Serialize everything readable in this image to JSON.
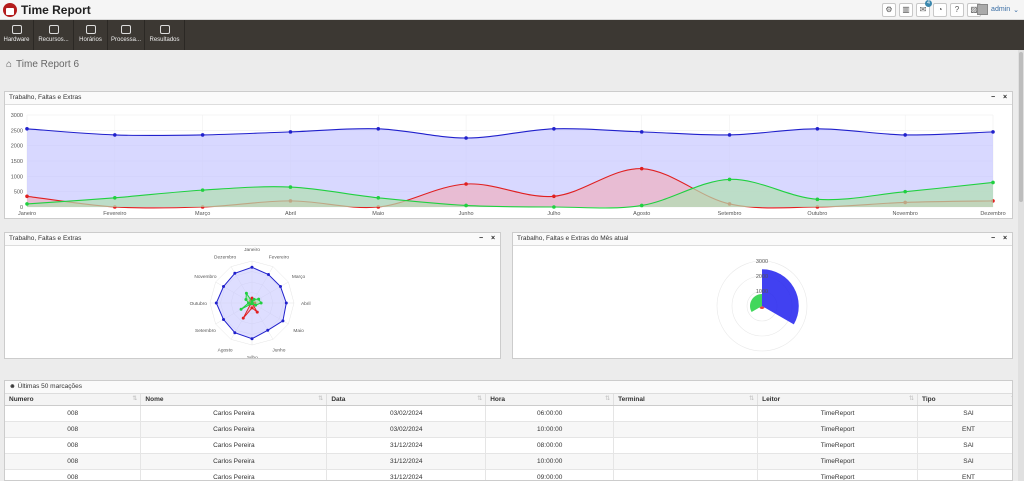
{
  "app": {
    "title": "Time Report",
    "user": "admin",
    "notifications": "4"
  },
  "topbar_icons": [
    "settings-icon",
    "chart-icon",
    "messages-icon",
    "dashboard-icon",
    "help-icon",
    "image-icon"
  ],
  "nav": [
    {
      "label": "Hardware",
      "icon": "hardware-icon"
    },
    {
      "label": "Recursos...",
      "icon": "resources-icon"
    },
    {
      "label": "Horários",
      "icon": "schedule-icon"
    },
    {
      "label": "Processa...",
      "icon": "process-icon"
    },
    {
      "label": "Resultados",
      "icon": "results-icon"
    }
  ],
  "breadcrumb": "Time Report 6",
  "panels": {
    "main_chart": "Trabalho, Faltas e Extras",
    "radar_chart": "Trabalho, Faltas e Extras",
    "polar_chart": "Trabalho, Faltas e Extras do Mês atual",
    "table": "Últimas 50 marcações"
  },
  "chart_data": [
    {
      "type": "area",
      "categories": [
        "Janeiro",
        "Fevereiro",
        "Março",
        "Abril",
        "Maio",
        "Junho",
        "Julho",
        "Agosto",
        "Setembro",
        "Outubro",
        "Novembro",
        "Dezembro"
      ],
      "ylim": [
        0,
        3000
      ],
      "yticks": [
        0,
        500,
        1000,
        1500,
        2000,
        2500,
        3000
      ],
      "grid": true,
      "series": [
        {
          "color": "#2020cc",
          "fill": "#c8c8ff",
          "values": [
            2550,
            2350,
            2350,
            2450,
            2550,
            2250,
            2550,
            2450,
            2350,
            2550,
            2350,
            2450
          ]
        },
        {
          "color": "#e02020",
          "fill": "#f0b0c0",
          "values": [
            350,
            0,
            0,
            200,
            0,
            750,
            350,
            1250,
            100,
            0,
            150,
            200
          ]
        },
        {
          "color": "#20d040",
          "fill": "#b0e0b0",
          "values": [
            100,
            300,
            550,
            650,
            300,
            50,
            0,
            50,
            900,
            250,
            500,
            800
          ]
        }
      ]
    },
    {
      "type": "radar",
      "categories": [
        "Janeiro",
        "Fevereiro",
        "Março",
        "Abril",
        "Maio",
        "Junho",
        "Julho",
        "Agosto",
        "Setembro",
        "Outubro",
        "Novembro",
        "Dezembro"
      ],
      "rlim": [
        0,
        3000
      ],
      "series": [
        {
          "color": "#2020cc",
          "values": [
            2550,
            2350,
            2350,
            2450,
            2550,
            2250,
            2550,
            2450,
            2350,
            2550,
            2350,
            2450
          ]
        },
        {
          "color": "#e02020",
          "values": [
            350,
            0,
            0,
            200,
            0,
            750,
            350,
            1250,
            100,
            0,
            150,
            200
          ]
        },
        {
          "color": "#20d040",
          "values": [
            100,
            300,
            550,
            650,
            300,
            50,
            0,
            50,
            900,
            250,
            500,
            800
          ]
        }
      ]
    },
    {
      "type": "polar-area",
      "rticks": [
        1000,
        2000,
        3000
      ],
      "rlim": [
        0,
        3000
      ],
      "series": [
        {
          "color": "#2020ee",
          "value": 2450
        },
        {
          "color": "#e02020",
          "value": 200
        },
        {
          "color": "#20d040",
          "value": 800
        }
      ]
    }
  ],
  "table": {
    "columns": [
      "Numero",
      "Nome",
      "Data",
      "Hora",
      "Terminal",
      "Leitor",
      "Tipo"
    ],
    "rows": [
      [
        "008",
        "Carlos Pereira",
        "03/02/2024",
        "06:00:00",
        "",
        "TimeReport",
        "SAI"
      ],
      [
        "008",
        "Carlos Pereira",
        "03/02/2024",
        "10:00:00",
        "",
        "TimeReport",
        "ENT"
      ],
      [
        "008",
        "Carlos Pereira",
        "31/12/2024",
        "08:00:00",
        "",
        "TimeReport",
        "SAI"
      ],
      [
        "008",
        "Carlos Pereira",
        "31/12/2024",
        "10:00:00",
        "",
        "TimeReport",
        "SAI"
      ],
      [
        "008",
        "Carlos Pereira",
        "31/12/2024",
        "09:00:00",
        "",
        "TimeReport",
        "ENT"
      ]
    ]
  }
}
